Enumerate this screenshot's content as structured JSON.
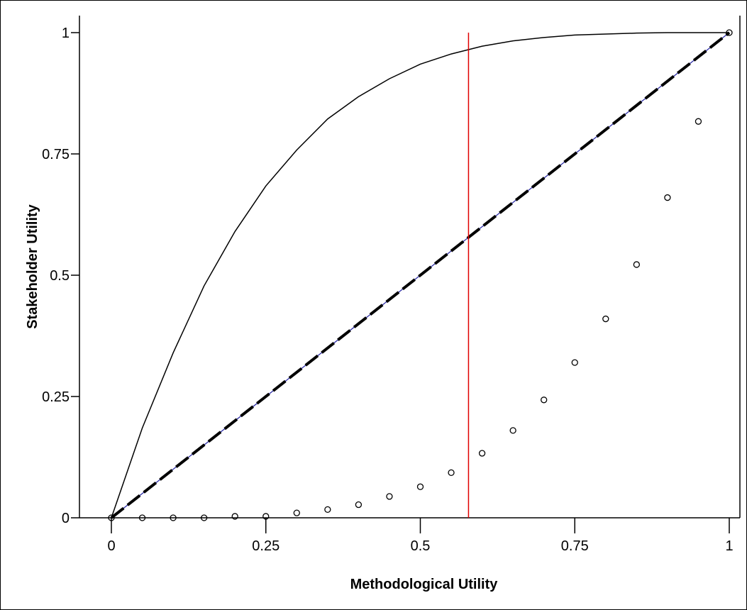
{
  "chart_data": {
    "type": "line",
    "title": "",
    "xlabel": "Methodological Utility",
    "ylabel": "Stakeholder Utility",
    "xlim": [
      0,
      1
    ],
    "ylim": [
      0,
      1
    ],
    "xticks": [
      0,
      0.25,
      0.5,
      0.75,
      1
    ],
    "xtick_labels": [
      "0",
      "0.25",
      "0.5",
      "0.75",
      "1"
    ],
    "yticks": [
      0,
      0.25,
      0.5,
      0.75,
      1
    ],
    "ytick_labels": [
      "0",
      "0.25",
      "0.5",
      "0.75",
      "1"
    ],
    "grid": false,
    "legend": false,
    "vertical_line": {
      "x": 0.578,
      "color": "#e00000"
    },
    "series": [
      {
        "style": "solid-black",
        "x": [
          0,
          0.05,
          0.1,
          0.15,
          0.2,
          0.25,
          0.3,
          0.35,
          0.4,
          0.45,
          0.5,
          0.55,
          0.6,
          0.65,
          0.7,
          0.75,
          0.8,
          0.85,
          0.9,
          0.95,
          1
        ],
        "y": [
          0,
          0.185,
          0.34,
          0.478,
          0.59,
          0.684,
          0.758,
          0.822,
          0.868,
          0.905,
          0.935,
          0.956,
          0.972,
          0.983,
          0.99,
          0.995,
          0.997,
          0.999,
          1.0,
          1.0,
          1.0
        ]
      },
      {
        "style": "thin-blue",
        "color": "#2020a0",
        "x": [
          0,
          1
        ],
        "y": [
          0,
          1
        ]
      },
      {
        "style": "dashed-black",
        "x": [
          0,
          1
        ],
        "y": [
          0,
          1
        ]
      },
      {
        "style": "open-circles",
        "x": [
          0,
          0.05,
          0.1,
          0.15,
          0.2,
          0.25,
          0.3,
          0.35,
          0.4,
          0.45,
          0.5,
          0.55,
          0.6,
          0.65,
          0.7,
          0.75,
          0.8,
          0.85,
          0.9,
          0.95,
          1
        ],
        "y": [
          0,
          0.0,
          0.0,
          0.0,
          0.003,
          0.003,
          0.01,
          0.017,
          0.027,
          0.044,
          0.064,
          0.093,
          0.133,
          0.18,
          0.243,
          0.32,
          0.41,
          0.522,
          0.66,
          0.817,
          1.0
        ]
      }
    ]
  }
}
